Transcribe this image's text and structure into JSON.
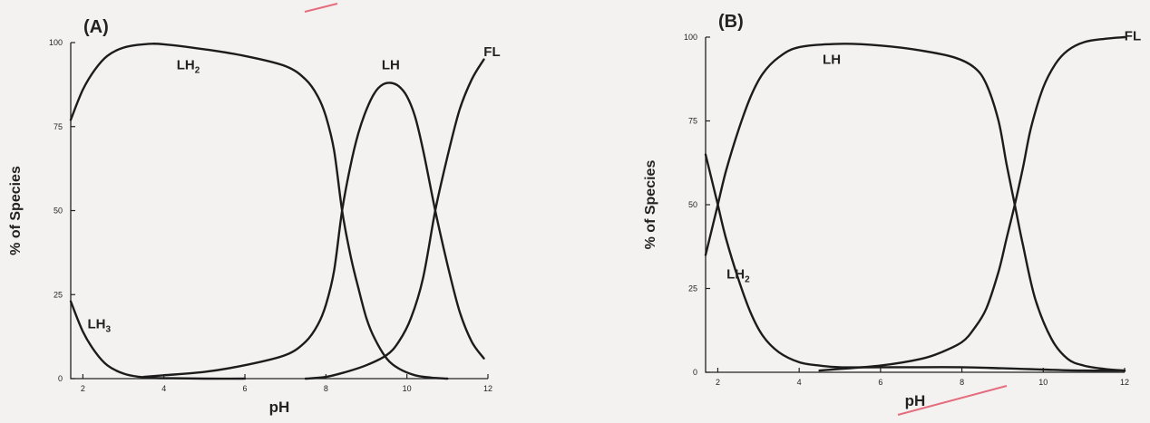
{
  "chart_data": [
    {
      "type": "line",
      "panel_label": "(A)",
      "xlabel": "pH",
      "ylabel": "% of Species",
      "xlim": [
        1.7,
        12
      ],
      "ylim": [
        0,
        100
      ],
      "xticks": [
        2,
        4,
        6,
        8,
        10,
        12
      ],
      "yticks": [
        0,
        25,
        50,
        75,
        100
      ],
      "series": [
        {
          "name": "LH",
          "label_sub": "3",
          "label_x": 2.4,
          "label_y": 15,
          "x": [
            1.7,
            2.0,
            2.3,
            2.6,
            3.0,
            3.4,
            3.8,
            4.2,
            5.0,
            6.0
          ],
          "y": [
            23,
            14,
            8,
            4,
            1.5,
            0.5,
            0.2,
            0.1,
            0,
            0
          ]
        },
        {
          "name": "LH",
          "label_sub": "2",
          "label_x": 4.6,
          "label_y": 92,
          "x": [
            1.7,
            2.0,
            2.3,
            2.6,
            3.0,
            3.5,
            4.0,
            5.0,
            6.0,
            7.0,
            7.5,
            7.8,
            8.0,
            8.2,
            8.4,
            8.6,
            8.8,
            9.0,
            9.2,
            9.5,
            9.8,
            10.2,
            10.6,
            11.0
          ],
          "y": [
            77,
            86,
            92,
            96,
            98.5,
            99.5,
            99.5,
            98,
            96,
            93,
            89,
            84,
            78,
            68,
            50,
            37,
            27,
            18,
            12,
            6,
            3,
            1,
            0.3,
            0
          ]
        },
        {
          "name": "LH",
          "label_x": 9.6,
          "label_y": 92,
          "x": [
            3.5,
            4.0,
            5.0,
            6.0,
            7.0,
            7.5,
            7.8,
            8.0,
            8.2,
            8.4,
            8.6,
            8.8,
            9.0,
            9.2,
            9.4,
            9.6,
            9.8,
            10.0,
            10.2,
            10.4,
            10.7,
            11.0,
            11.3,
            11.6,
            11.9
          ],
          "y": [
            0.5,
            1,
            2,
            4,
            7,
            11,
            16,
            22,
            32,
            50,
            63,
            73,
            80,
            85,
            87.5,
            88,
            87,
            84,
            78,
            68,
            50,
            34,
            20,
            11,
            6
          ]
        },
        {
          "name": "FL",
          "label_x": 12.1,
          "label_y": 96,
          "x": [
            7.5,
            8.0,
            8.5,
            9.0,
            9.5,
            9.8,
            10.1,
            10.4,
            10.7,
            11.0,
            11.3,
            11.6,
            11.9
          ],
          "y": [
            0,
            0.5,
            2,
            4,
            7,
            11,
            18,
            30,
            50,
            66,
            80,
            89,
            95
          ]
        }
      ]
    },
    {
      "type": "line",
      "panel_label": "(B)",
      "xlabel": "pH",
      "ylabel": "% of Species",
      "xlim": [
        1.7,
        12
      ],
      "ylim": [
        0,
        100
      ],
      "xticks": [
        2,
        4,
        6,
        8,
        10,
        12
      ],
      "yticks": [
        0,
        25,
        50,
        75,
        100
      ],
      "series": [
        {
          "name": "LH",
          "label_sub": "2",
          "label_x": 2.5,
          "label_y": 28,
          "x": [
            1.7,
            1.8,
            2.0,
            2.2,
            2.5,
            2.8,
            3.1,
            3.5,
            4.0,
            4.5,
            5.0,
            6.0,
            7.0,
            8.0,
            9.0,
            9.5,
            10.0,
            11.0,
            12.0
          ],
          "y": [
            65,
            60,
            50,
            40,
            28,
            18,
            11,
            6,
            3,
            2,
            1.5,
            1.5,
            1.5,
            1.5,
            1.2,
            1,
            0.8,
            0.5,
            0.5
          ]
        },
        {
          "name": "LH",
          "label_x": 4.8,
          "label_y": 92,
          "x": [
            1.7,
            1.8,
            2.0,
            2.2,
            2.5,
            2.8,
            3.1,
            3.5,
            4.0,
            5.0,
            6.0,
            7.0,
            7.8,
            8.3,
            8.6,
            8.9,
            9.1,
            9.3,
            9.5,
            9.8,
            10.2,
            10.6,
            11.0,
            11.5,
            12.0
          ],
          "y": [
            35,
            40,
            50,
            60,
            72,
            82,
            89,
            94,
            97,
            98,
            97.5,
            96,
            94,
            91,
            86,
            75,
            62,
            50,
            38,
            22,
            10,
            4,
            2,
            1,
            0.5
          ]
        },
        {
          "name": "FL",
          "label_x": 12.2,
          "label_y": 99,
          "x": [
            4.5,
            5.0,
            6.0,
            7.0,
            7.5,
            8.0,
            8.3,
            8.6,
            8.9,
            9.1,
            9.3,
            9.5,
            9.7,
            10.0,
            10.3,
            10.6,
            11.0,
            11.5,
            12.0
          ],
          "y": [
            0.5,
            1,
            2,
            4,
            6,
            9,
            13,
            19,
            30,
            40,
            50,
            61,
            73,
            85,
            92,
            96,
            98.5,
            99.5,
            100
          ]
        }
      ]
    }
  ]
}
